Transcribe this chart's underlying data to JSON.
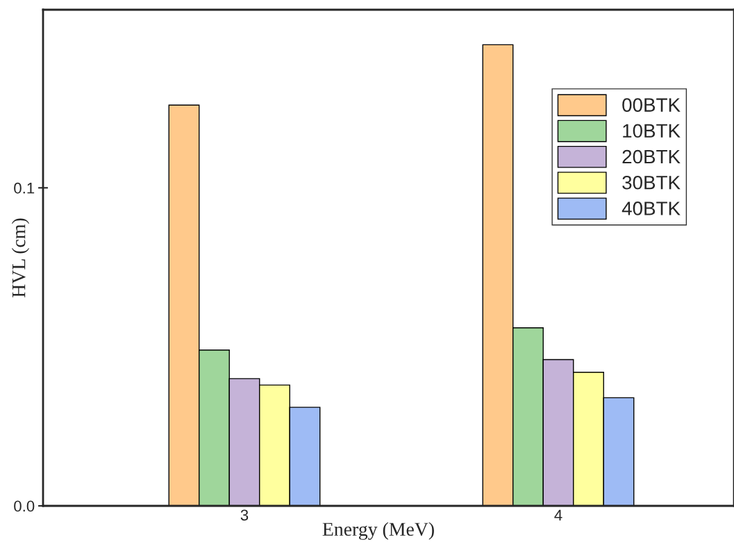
{
  "chart_data": {
    "type": "bar",
    "xlabel": "Energy (MeV)",
    "ylabel": "HVL (cm)",
    "categories": [
      "3",
      "4"
    ],
    "series": [
      {
        "name": "00BTK",
        "color": "#ffc98b",
        "values": [
          0.126,
          0.145
        ]
      },
      {
        "name": "10BTK",
        "color": "#9fd69b",
        "values": [
          0.049,
          0.056
        ]
      },
      {
        "name": "20BTK",
        "color": "#c5b3d8",
        "values": [
          0.04,
          0.046
        ]
      },
      {
        "name": "30BTK",
        "color": "#ffff9e",
        "values": [
          0.038,
          0.042
        ]
      },
      {
        "name": "40BTK",
        "color": "#9ebbf5",
        "values": [
          0.031,
          0.034
        ]
      }
    ],
    "ylim": [
      0,
      0.156
    ],
    "yticks": [
      {
        "value": 0,
        "label": "0.0"
      },
      {
        "value": 0.1,
        "label": "0.1"
      }
    ],
    "grid": false,
    "legend": "top right"
  }
}
